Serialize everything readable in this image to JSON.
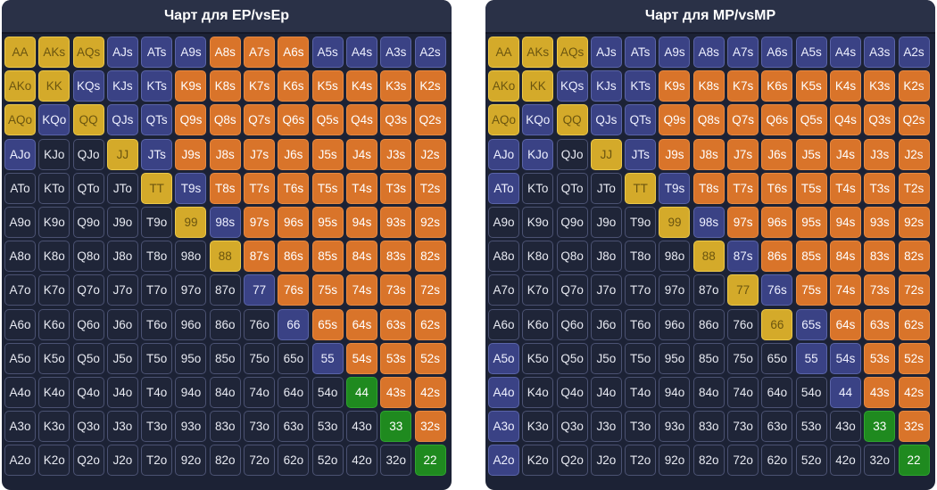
{
  "legend_colors": {
    "fold": "#1f2538",
    "call": "#3a4285",
    "raise": "#d4aa2a",
    "open": "#d9742a",
    "shove": "#1f8a1f"
  },
  "charts": [
    {
      "title": "Чарт для EP/vsEp",
      "rows": [
        [
          "raise",
          "raise",
          "raise",
          "call",
          "call",
          "call",
          "open",
          "open",
          "open",
          "call",
          "call",
          "call",
          "call"
        ],
        [
          "raise",
          "raise",
          "call",
          "call",
          "call",
          "open",
          "open",
          "open",
          "open",
          "open",
          "open",
          "open",
          "open"
        ],
        [
          "raise",
          "call",
          "raise",
          "call",
          "call",
          "open",
          "open",
          "open",
          "open",
          "open",
          "open",
          "open",
          "open"
        ],
        [
          "call",
          "fold",
          "fold",
          "raise",
          "call",
          "open",
          "open",
          "open",
          "open",
          "open",
          "open",
          "open",
          "open"
        ],
        [
          "fold",
          "fold",
          "fold",
          "fold",
          "raise",
          "call",
          "open",
          "open",
          "open",
          "open",
          "open",
          "open",
          "open"
        ],
        [
          "fold",
          "fold",
          "fold",
          "fold",
          "fold",
          "raise",
          "call",
          "open",
          "open",
          "open",
          "open",
          "open",
          "open"
        ],
        [
          "fold",
          "fold",
          "fold",
          "fold",
          "fold",
          "fold",
          "raise",
          "open",
          "open",
          "open",
          "open",
          "open",
          "open"
        ],
        [
          "fold",
          "fold",
          "fold",
          "fold",
          "fold",
          "fold",
          "fold",
          "call",
          "open",
          "open",
          "open",
          "open",
          "open"
        ],
        [
          "fold",
          "fold",
          "fold",
          "fold",
          "fold",
          "fold",
          "fold",
          "fold",
          "call",
          "open",
          "open",
          "open",
          "open"
        ],
        [
          "fold",
          "fold",
          "fold",
          "fold",
          "fold",
          "fold",
          "fold",
          "fold",
          "fold",
          "call",
          "open",
          "open",
          "open"
        ],
        [
          "fold",
          "fold",
          "fold",
          "fold",
          "fold",
          "fold",
          "fold",
          "fold",
          "fold",
          "fold",
          "shove",
          "open",
          "open"
        ],
        [
          "fold",
          "fold",
          "fold",
          "fold",
          "fold",
          "fold",
          "fold",
          "fold",
          "fold",
          "fold",
          "fold",
          "shove",
          "open"
        ],
        [
          "fold",
          "fold",
          "fold",
          "fold",
          "fold",
          "fold",
          "fold",
          "fold",
          "fold",
          "fold",
          "fold",
          "fold",
          "shove"
        ]
      ]
    },
    {
      "title": "Чарт для MP/vsMP",
      "rows": [
        [
          "raise",
          "raise",
          "raise",
          "call",
          "call",
          "call",
          "call",
          "call",
          "call",
          "call",
          "call",
          "call",
          "call"
        ],
        [
          "raise",
          "raise",
          "call",
          "call",
          "call",
          "open",
          "open",
          "open",
          "open",
          "open",
          "open",
          "open",
          "open"
        ],
        [
          "raise",
          "call",
          "raise",
          "call",
          "call",
          "open",
          "open",
          "open",
          "open",
          "open",
          "open",
          "open",
          "open"
        ],
        [
          "call",
          "call",
          "fold",
          "raise",
          "call",
          "open",
          "open",
          "open",
          "open",
          "open",
          "open",
          "open",
          "open"
        ],
        [
          "call",
          "fold",
          "fold",
          "fold",
          "raise",
          "call",
          "open",
          "open",
          "open",
          "open",
          "open",
          "open",
          "open"
        ],
        [
          "fold",
          "fold",
          "fold",
          "fold",
          "fold",
          "raise",
          "call",
          "open",
          "open",
          "open",
          "open",
          "open",
          "open"
        ],
        [
          "fold",
          "fold",
          "fold",
          "fold",
          "fold",
          "fold",
          "raise",
          "call",
          "open",
          "open",
          "open",
          "open",
          "open"
        ],
        [
          "fold",
          "fold",
          "fold",
          "fold",
          "fold",
          "fold",
          "fold",
          "raise",
          "call",
          "open",
          "open",
          "open",
          "open"
        ],
        [
          "fold",
          "fold",
          "fold",
          "fold",
          "fold",
          "fold",
          "fold",
          "fold",
          "raise",
          "call",
          "open",
          "open",
          "open"
        ],
        [
          "call",
          "fold",
          "fold",
          "fold",
          "fold",
          "fold",
          "fold",
          "fold",
          "fold",
          "call",
          "call",
          "open",
          "open"
        ],
        [
          "call",
          "fold",
          "fold",
          "fold",
          "fold",
          "fold",
          "fold",
          "fold",
          "fold",
          "fold",
          "call",
          "open",
          "open"
        ],
        [
          "call",
          "fold",
          "fold",
          "fold",
          "fold",
          "fold",
          "fold",
          "fold",
          "fold",
          "fold",
          "fold",
          "shove",
          "open"
        ],
        [
          "call",
          "fold",
          "fold",
          "fold",
          "fold",
          "fold",
          "fold",
          "fold",
          "fold",
          "fold",
          "fold",
          "fold",
          "shove"
        ]
      ]
    }
  ]
}
